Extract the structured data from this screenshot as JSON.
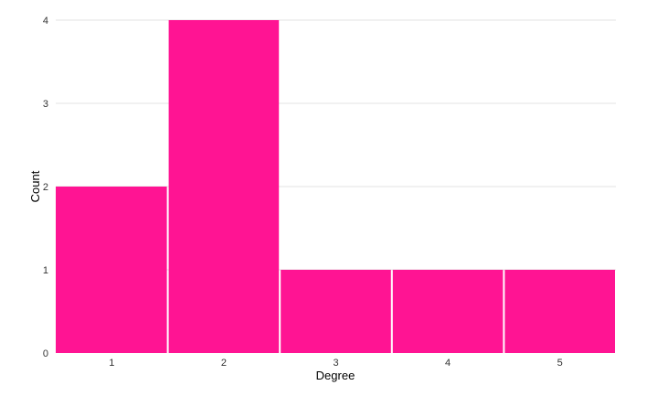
{
  "chart_data": {
    "type": "bar",
    "categories": [
      "1",
      "2",
      "3",
      "4",
      "5"
    ],
    "values": [
      2,
      4,
      1,
      1,
      1
    ],
    "title": "",
    "xlabel": "Degree",
    "ylabel": "Count",
    "ylim": [
      0,
      4
    ],
    "yticks": [
      "0",
      "1",
      "2",
      "3",
      "4"
    ],
    "grid": true,
    "bar_color": "#ff1493"
  }
}
